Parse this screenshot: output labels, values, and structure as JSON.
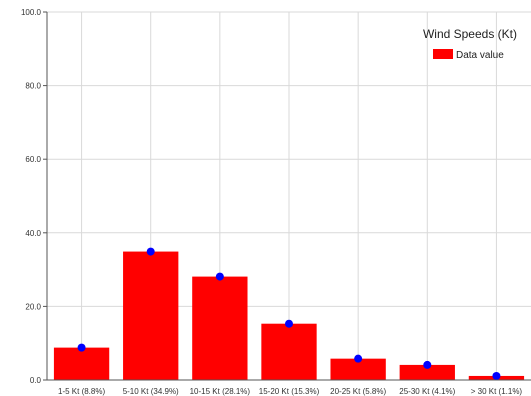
{
  "chart_data": {
    "type": "bar",
    "categories": [
      "1-5 Kt (8.8%)",
      "5-10 Kt (34.9%)",
      "10-15 Kt (28.1%)",
      "15-20 Kt (15.3%)",
      "20-25 Kt (5.8%)",
      "25-30 Kt (4.1%)",
      "> 30 Kt (1.1%)"
    ],
    "series": [
      {
        "name": "Data value",
        "values": [
          8.8,
          34.9,
          28.1,
          15.3,
          5.8,
          4.1,
          1.1
        ],
        "color": "#ff0000",
        "marker_color": "#0000ff"
      }
    ],
    "y_ticks": [
      "0.0",
      "20.0",
      "40.0",
      "60.0",
      "80.0",
      "100.0"
    ],
    "ylim": [
      0,
      100
    ],
    "legend": {
      "title": "Wind Speeds (Kt)",
      "placement": "top-right"
    },
    "grid": true
  }
}
